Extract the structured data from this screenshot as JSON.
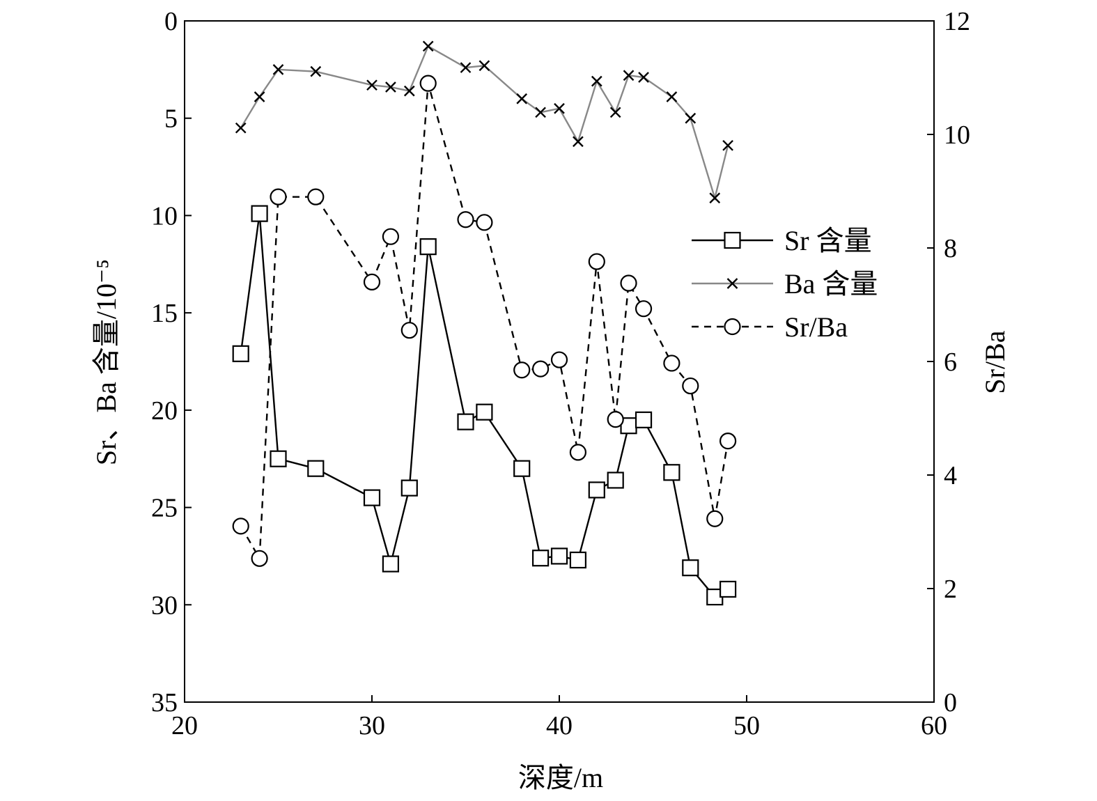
{
  "chart_data": {
    "type": "line",
    "title": "",
    "xlabel": "深度/m",
    "ylabel_left": "Sr、Ba 含量/10⁻⁵",
    "ylabel_right": "Sr/Ba",
    "xlim": [
      20,
      60
    ],
    "ylim_left": [
      0,
      35
    ],
    "ylim_left_inverted": true,
    "ylim_right": [
      0,
      12
    ],
    "x_ticks": [
      20,
      30,
      40,
      50,
      60
    ],
    "y_left_ticks": [
      0,
      5,
      10,
      15,
      20,
      25,
      30,
      35
    ],
    "y_right_ticks": [
      0,
      2,
      4,
      6,
      8,
      10,
      12
    ],
    "legend_position": "right",
    "grid": false,
    "series": [
      {
        "name": "Sr 含量",
        "axis": "left",
        "color": "#000000",
        "line_style": "solid",
        "marker": "square",
        "x": [
          23,
          24,
          25,
          27,
          30,
          31,
          32,
          33,
          35,
          36,
          38,
          39,
          40,
          41,
          42,
          43,
          43.7,
          44.5,
          46,
          47,
          48.3,
          49
        ],
        "y": [
          17.1,
          9.9,
          22.5,
          23,
          24.5,
          27.9,
          24,
          11.6,
          20.6,
          20.1,
          23,
          27.6,
          27.5,
          27.7,
          24.1,
          23.6,
          20.8,
          20.5,
          23.2,
          28.1,
          29.6,
          29.2
        ]
      },
      {
        "name": "Ba 含量",
        "axis": "left",
        "color": "#888888",
        "line_style": "solid",
        "marker": "x",
        "x": [
          23,
          24,
          25,
          27,
          30,
          31,
          32,
          33,
          35,
          36,
          38,
          39,
          40,
          41,
          42,
          43,
          43.7,
          44.5,
          46,
          47,
          48.3,
          49
        ],
        "y": [
          5.5,
          3.9,
          2.5,
          2.6,
          3.3,
          3.4,
          3.6,
          1.3,
          2.4,
          2.3,
          4,
          4.7,
          4.5,
          6.2,
          3.1,
          4.7,
          2.8,
          2.9,
          3.9,
          5,
          9.1,
          6.4
        ]
      },
      {
        "name": "Sr/Ba",
        "axis": "right",
        "color": "#000000",
        "line_style": "dashed",
        "marker": "circle",
        "x": [
          23,
          24,
          25,
          27,
          30,
          31,
          32,
          33,
          35,
          36,
          38,
          39,
          40,
          41,
          42,
          43,
          43.7,
          44.5,
          46,
          47,
          48.3,
          49
        ],
        "y": [
          3.1,
          2.53,
          8.9,
          8.9,
          7.4,
          8.2,
          6.55,
          10.9,
          8.5,
          8.45,
          5.85,
          5.87,
          6.03,
          4.4,
          7.76,
          4.98,
          7.38,
          6.93,
          5.97,
          5.57,
          3.23,
          4.6
        ]
      }
    ]
  }
}
